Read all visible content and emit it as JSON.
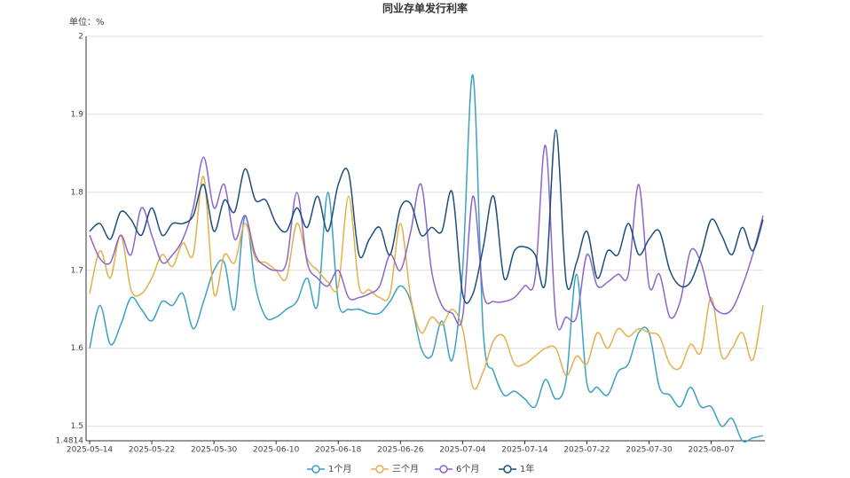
{
  "chart_data": {
    "type": "line",
    "title": "同业存单发行利率",
    "y_unit_label": "单位：%",
    "categories": [
      "2025-05-14",
      null,
      null,
      null,
      null,
      null,
      "2025-05-22",
      null,
      null,
      null,
      null,
      null,
      "2025-05-30",
      null,
      null,
      null,
      null,
      null,
      "2025-06-10",
      null,
      null,
      null,
      null,
      null,
      "2025-06-18",
      null,
      null,
      null,
      null,
      null,
      "2025-06-26",
      null,
      null,
      null,
      null,
      null,
      "2025-07-04",
      null,
      null,
      null,
      null,
      null,
      "2025-07-14",
      null,
      null,
      null,
      null,
      null,
      "2025-07-22",
      null,
      null,
      null,
      null,
      null,
      "2025-07-30",
      null,
      null,
      null,
      null,
      null,
      "2025-08-07",
      null,
      null,
      null,
      null,
      null
    ],
    "ylim": [
      1.4814,
      2
    ],
    "yticks": [
      1.4814,
      1.5,
      1.6,
      1.7,
      1.8,
      1.9,
      2
    ],
    "grid": true,
    "smooth": true,
    "legend": "bottom",
    "series": [
      {
        "name": "1个月",
        "color": "#3ba1c4",
        "values": [
          1.6,
          1.655,
          1.605,
          1.63,
          1.665,
          1.65,
          1.635,
          1.66,
          1.655,
          1.67,
          1.625,
          1.66,
          1.7,
          1.71,
          1.65,
          1.77,
          1.68,
          1.64,
          1.64,
          1.65,
          1.66,
          1.69,
          1.655,
          1.8,
          1.66,
          1.65,
          1.65,
          1.645,
          1.645,
          1.66,
          1.68,
          1.66,
          1.6,
          1.59,
          1.635,
          1.585,
          1.7,
          1.95,
          1.62,
          1.57,
          1.54,
          1.545,
          1.535,
          1.525,
          1.56,
          1.535,
          1.56,
          1.695,
          1.555,
          1.55,
          1.54,
          1.57,
          1.58,
          1.62,
          1.62,
          1.55,
          1.54,
          1.525,
          1.55,
          1.525,
          1.525,
          1.5,
          1.51,
          1.4814,
          1.485,
          1.488
        ]
      },
      {
        "name": "三个月",
        "color": "#e3b04b",
        "values": [
          1.67,
          1.725,
          1.69,
          1.745,
          1.675,
          1.67,
          1.69,
          1.72,
          1.705,
          1.735,
          1.72,
          1.82,
          1.67,
          1.72,
          1.71,
          1.76,
          1.715,
          1.71,
          1.7,
          1.69,
          1.76,
          1.715,
          1.7,
          1.685,
          1.68,
          1.795,
          1.68,
          1.675,
          1.665,
          1.67,
          1.76,
          1.665,
          1.62,
          1.64,
          1.63,
          1.65,
          1.625,
          1.55,
          1.57,
          1.61,
          1.615,
          1.58,
          1.58,
          1.59,
          1.6,
          1.6,
          1.565,
          1.59,
          1.58,
          1.62,
          1.6,
          1.625,
          1.615,
          1.625,
          1.62,
          1.615,
          1.58,
          1.575,
          1.605,
          1.595,
          1.665,
          1.59,
          1.6,
          1.62,
          1.585,
          1.655
        ]
      },
      {
        "name": "6个月",
        "color": "#8b67c9",
        "values": [
          1.745,
          1.715,
          1.71,
          1.745,
          1.72,
          1.78,
          1.745,
          1.71,
          1.72,
          1.74,
          1.78,
          1.845,
          1.78,
          1.81,
          1.74,
          1.77,
          1.72,
          1.705,
          1.7,
          1.71,
          1.8,
          1.71,
          1.69,
          1.68,
          1.7,
          1.665,
          1.665,
          1.67,
          1.68,
          1.72,
          1.7,
          1.75,
          1.81,
          1.7,
          1.655,
          1.645,
          1.64,
          1.795,
          1.67,
          1.66,
          1.66,
          1.665,
          1.68,
          1.69,
          1.86,
          1.64,
          1.64,
          1.64,
          1.72,
          1.68,
          1.685,
          1.695,
          1.695,
          1.81,
          1.68,
          1.695,
          1.64,
          1.66,
          1.725,
          1.71,
          1.66,
          1.645,
          1.65,
          1.68,
          1.72,
          1.77
        ]
      },
      {
        "name": "1年",
        "color": "#1d4f7a",
        "values": [
          1.75,
          1.76,
          1.74,
          1.775,
          1.765,
          1.745,
          1.78,
          1.745,
          1.76,
          1.76,
          1.77,
          1.81,
          1.75,
          1.79,
          1.775,
          1.83,
          1.79,
          1.79,
          1.76,
          1.75,
          1.78,
          1.755,
          1.795,
          1.75,
          1.81,
          1.825,
          1.72,
          1.74,
          1.755,
          1.72,
          1.78,
          1.785,
          1.745,
          1.755,
          1.75,
          1.8,
          1.67,
          1.67,
          1.73,
          1.795,
          1.69,
          1.725,
          1.73,
          1.72,
          1.685,
          1.88,
          1.685,
          1.71,
          1.75,
          1.69,
          1.725,
          1.72,
          1.76,
          1.72,
          1.74,
          1.75,
          1.7,
          1.68,
          1.685,
          1.72,
          1.765,
          1.745,
          1.72,
          1.755,
          1.725,
          1.765
        ]
      }
    ]
  }
}
